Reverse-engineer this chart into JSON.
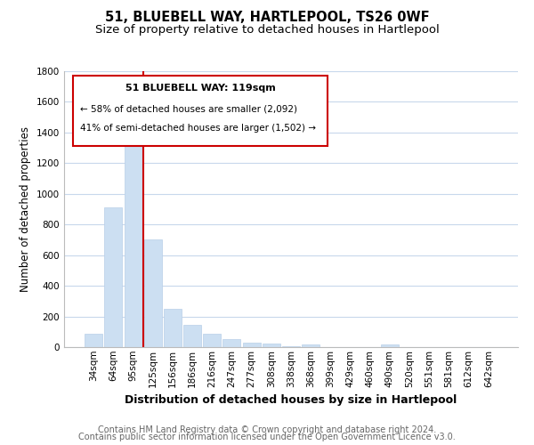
{
  "title": "51, BLUEBELL WAY, HARTLEPOOL, TS26 0WF",
  "subtitle": "Size of property relative to detached houses in Hartlepool",
  "xlabel": "Distribution of detached houses by size in Hartlepool",
  "ylabel": "Number of detached properties",
  "bar_labels": [
    "34sqm",
    "64sqm",
    "95sqm",
    "125sqm",
    "156sqm",
    "186sqm",
    "216sqm",
    "247sqm",
    "277sqm",
    "308sqm",
    "338sqm",
    "368sqm",
    "399sqm",
    "429sqm",
    "460sqm",
    "490sqm",
    "520sqm",
    "551sqm",
    "581sqm",
    "612sqm",
    "642sqm"
  ],
  "bar_values": [
    90,
    910,
    1360,
    700,
    250,
    145,
    90,
    55,
    30,
    25,
    5,
    15,
    0,
    0,
    0,
    15,
    0,
    0,
    0,
    0,
    0
  ],
  "bar_color": "#ccdff2",
  "bar_edge_color": "#b8cfe8",
  "vline_color": "#cc0000",
  "annotation_title": "51 BLUEBELL WAY: 119sqm",
  "annotation_line1": "← 58% of detached houses are smaller (2,092)",
  "annotation_line2": "41% of semi-detached houses are larger (1,502) →",
  "annotation_box_color": "#ffffff",
  "annotation_box_edge_color": "#cc0000",
  "ylim": [
    0,
    1800
  ],
  "yticks": [
    0,
    200,
    400,
    600,
    800,
    1000,
    1200,
    1400,
    1600,
    1800
  ],
  "footer_line1": "Contains HM Land Registry data © Crown copyright and database right 2024.",
  "footer_line2": "Contains public sector information licensed under the Open Government Licence v3.0.",
  "grid_color": "#c8d8ec",
  "background_color": "#ffffff",
  "title_fontsize": 10.5,
  "subtitle_fontsize": 9.5,
  "xlabel_fontsize": 9,
  "ylabel_fontsize": 8.5,
  "tick_fontsize": 7.5,
  "footer_fontsize": 7,
  "annot_title_fontsize": 8,
  "annot_text_fontsize": 7.5
}
